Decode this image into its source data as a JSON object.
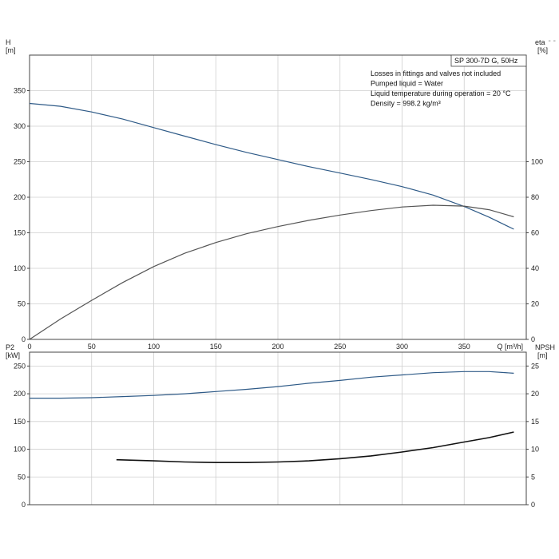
{
  "corner_mark": "- -",
  "chart_data": [
    {
      "type": "line",
      "panel": "top",
      "tag": "SP 300-7D G, 50Hz",
      "notes": [
        "Losses in fittings and valves not included",
        "Pumped liquid = Water",
        "Liquid temperature during operation = 20 °C",
        "Density = 998.2 kg/m³"
      ],
      "xlabel": "Q [m³/h]",
      "xlim": [
        0,
        400
      ],
      "xticks": [
        0,
        50,
        100,
        150,
        200,
        250,
        300,
        350
      ],
      "ylabel": "H",
      "yunit": "[m]",
      "ylim": [
        0,
        400
      ],
      "yticks": [
        0,
        50,
        100,
        150,
        200,
        250,
        300,
        350
      ],
      "y2label": "eta",
      "y2unit": "[%]",
      "y2lim": [
        0,
        160
      ],
      "y2ticks": [
        0,
        20,
        40,
        60,
        80,
        100
      ],
      "grid": true,
      "series": [
        {
          "axis": "left",
          "color": "#2e5a87",
          "x": [
            0,
            25,
            50,
            75,
            100,
            125,
            150,
            175,
            200,
            225,
            250,
            275,
            300,
            325,
            350,
            370,
            390
          ],
          "y": [
            332,
            328,
            320,
            310,
            298,
            286,
            274,
            263,
            253,
            243,
            234,
            225,
            215,
            203,
            187,
            172,
            155
          ]
        },
        {
          "axis": "right",
          "color": "#555555",
          "x": [
            0,
            25,
            50,
            75,
            100,
            125,
            150,
            175,
            200,
            225,
            250,
            275,
            300,
            325,
            350,
            370,
            390
          ],
          "y": [
            0,
            11.5,
            22,
            32,
            41,
            48.5,
            54.5,
            59.5,
            63.5,
            67,
            70,
            72.5,
            74.5,
            75.5,
            75,
            73,
            69
          ]
        }
      ]
    },
    {
      "type": "line",
      "panel": "bottom",
      "xlim": [
        0,
        400
      ],
      "xticks": [
        0,
        50,
        100,
        150,
        200,
        250,
        300,
        350
      ],
      "ylabel": "P2",
      "yunit": "[kW]",
      "ylim": [
        0,
        275
      ],
      "yticks": [
        0,
        50,
        100,
        150,
        200,
        250
      ],
      "y2label": "NPSH",
      "y2unit": "[m]",
      "y2lim": [
        0,
        27.5
      ],
      "y2ticks": [
        0,
        5,
        10,
        15,
        20,
        25
      ],
      "grid": true,
      "series": [
        {
          "axis": "left",
          "color": "#2e5a87",
          "x": [
            0,
            25,
            50,
            75,
            100,
            125,
            150,
            175,
            200,
            225,
            250,
            275,
            300,
            325,
            350,
            370,
            390
          ],
          "y": [
            192,
            192,
            193,
            195,
            197,
            200,
            204,
            208,
            213,
            219,
            224,
            230,
            234,
            238,
            240,
            240,
            237
          ]
        },
        {
          "axis": "right",
          "color": "#111111",
          "x": [
            70,
            100,
            125,
            150,
            175,
            200,
            225,
            250,
            275,
            300,
            325,
            350,
            370,
            390
          ],
          "y": [
            8.1,
            7.9,
            7.7,
            7.6,
            7.6,
            7.7,
            7.9,
            8.3,
            8.8,
            9.5,
            10.3,
            11.3,
            12.1,
            13.1
          ]
        }
      ]
    }
  ]
}
